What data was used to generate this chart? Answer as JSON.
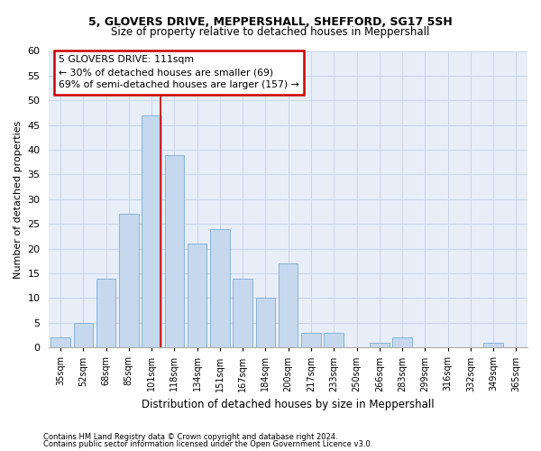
{
  "title1": "5, GLOVERS DRIVE, MEPPERSHALL, SHEFFORD, SG17 5SH",
  "title2": "Size of property relative to detached houses in Meppershall",
  "xlabel": "Distribution of detached houses by size in Meppershall",
  "ylabel": "Number of detached properties",
  "categories": [
    "35sqm",
    "52sqm",
    "68sqm",
    "85sqm",
    "101sqm",
    "118sqm",
    "134sqm",
    "151sqm",
    "167sqm",
    "184sqm",
    "200sqm",
    "217sqm",
    "233sqm",
    "250sqm",
    "266sqm",
    "283sqm",
    "299sqm",
    "316sqm",
    "332sqm",
    "349sqm",
    "365sqm"
  ],
  "values": [
    2,
    5,
    14,
    27,
    47,
    39,
    21,
    24,
    14,
    10,
    17,
    3,
    3,
    0,
    1,
    2,
    0,
    0,
    0,
    1,
    0
  ],
  "bar_color": "#c5d8ed",
  "bar_edge_color": "#7aadd4",
  "vline_x_idx": 4,
  "vline_color": "#cc0000",
  "annotation_text": "5 GLOVERS DRIVE: 111sqm\n← 30% of detached houses are smaller (69)\n69% of semi-detached houses are larger (157) →",
  "annotation_box_color": "white",
  "annotation_box_edgecolor": "#cc0000",
  "ylim": [
    0,
    60
  ],
  "yticks": [
    0,
    5,
    10,
    15,
    20,
    25,
    30,
    35,
    40,
    45,
    50,
    55,
    60
  ],
  "grid_color": "#c8d4e8",
  "background_color": "#e8eef8",
  "footer1": "Contains HM Land Registry data © Crown copyright and database right 2024.",
  "footer2": "Contains public sector information licensed under the Open Government Licence v3.0."
}
